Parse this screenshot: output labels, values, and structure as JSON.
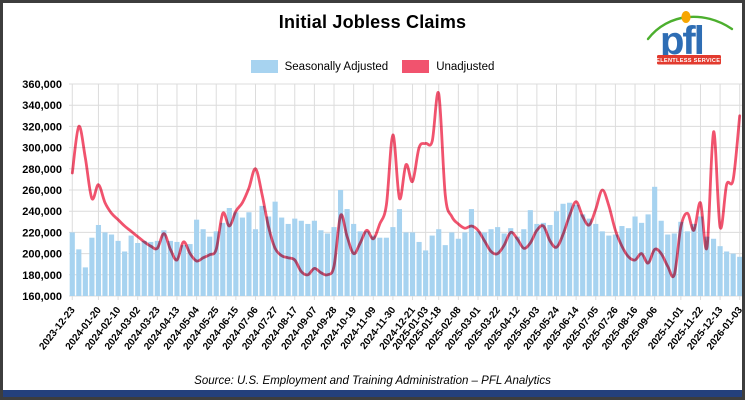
{
  "header": {
    "title": "Initial Jobless Claims"
  },
  "logo": {
    "text": "pfl",
    "tagline": "RELENTLESS SERVICE™",
    "colors": {
      "letters": "#2e6db4",
      "arc": "#4caf2e",
      "dot": "#f7a600",
      "box": "#e23a2e",
      "box_text": "#ffffff"
    }
  },
  "legend": [
    {
      "label": "Seasonally Adjusted",
      "color": "#a7d3f0"
    },
    {
      "label": "Unadjusted",
      "color": "#f1536e"
    }
  ],
  "footer": {
    "source": "Source: U.S. Employment and Training Administration – PFL Analytics",
    "bar_color": "#24407c"
  },
  "chart_data": {
    "type": "bar+line",
    "title": "Initial Jobless Claims",
    "xlabel": "",
    "ylabel": "",
    "ylim": [
      160000,
      360000
    ],
    "y_tick_step": 20000,
    "y_tick_labels": [
      "160,000",
      "180,000",
      "200,000",
      "220,000",
      "240,000",
      "260,000",
      "280,000",
      "300,000",
      "320,000",
      "340,000",
      "360,000"
    ],
    "grid": true,
    "grid_color": "#dcdcdc",
    "legend_position": "top",
    "x": [
      "2023-12-23",
      "2023-12-30",
      "2024-01-06",
      "2024-01-13",
      "2024-01-20",
      "2024-01-27",
      "2024-02-03",
      "2024-02-10",
      "2024-02-17",
      "2024-02-24",
      "2024-03-02",
      "2024-03-09",
      "2024-03-16",
      "2024-03-23",
      "2024-03-30",
      "2024-04-06",
      "2024-04-13",
      "2024-04-20",
      "2024-04-27",
      "2024-05-04",
      "2024-05-11",
      "2024-05-18",
      "2024-05-25",
      "2024-06-01",
      "2024-06-08",
      "2024-06-15",
      "2024-06-22",
      "2024-06-29",
      "2024-07-06",
      "2024-07-13",
      "2024-07-20",
      "2024-07-27",
      "2024-08-03",
      "2024-08-10",
      "2024-08-17",
      "2024-08-24",
      "2024-08-31",
      "2024-09-07",
      "2024-09-14",
      "2024-09-21",
      "2024-09-28",
      "2024-10-05",
      "2024-10-12",
      "2024-10-19",
      "2024-10-26",
      "2024-11-02",
      "2024-11-09",
      "2024-11-16",
      "2024-11-23",
      "2024-11-30",
      "2024-12-07",
      "2024-12-14",
      "2024-12-21",
      "2024-12-28",
      "2025-01-03",
      "2025-01-11",
      "2025-01-18",
      "2025-01-25",
      "2025-02-01",
      "2025-02-08",
      "2025-02-15",
      "2025-02-22",
      "2025-03-01",
      "2025-03-08",
      "2025-03-15",
      "2025-03-22",
      "2025-03-29",
      "2025-04-05",
      "2025-04-12",
      "2025-04-19",
      "2025-04-26",
      "2025-05-03",
      "2025-05-10",
      "2025-05-17",
      "2025-05-24",
      "2025-05-31",
      "2025-06-07",
      "2025-06-14",
      "2025-06-21",
      "2025-06-28",
      "2025-07-05",
      "2025-07-12",
      "2025-07-19",
      "2025-07-26",
      "2025-08-02",
      "2025-08-09",
      "2025-08-16",
      "2025-08-23",
      "2025-08-30",
      "2025-09-06",
      "2025-09-13",
      "2025-09-20",
      "2025-09-27",
      "2025-11-01",
      "2025-11-08",
      "2025-11-15",
      "2025-11-22",
      "2025-11-29",
      "2025-12-06",
      "2025-12-13",
      "2025-12-20",
      "2025-12-27",
      "2026-01-03"
    ],
    "x_tick_indices": [
      0,
      4,
      7,
      10,
      13,
      16,
      19,
      22,
      25,
      28,
      31,
      34,
      37,
      40,
      43,
      46,
      49,
      52,
      54,
      56,
      59,
      62,
      65,
      68,
      71,
      74,
      77,
      80,
      83,
      86,
      89,
      93,
      96,
      99,
      102
    ],
    "x_tick_labels": [
      "2023-12-23",
      "2024-01-20",
      "2024-02-10",
      "2024-03-02",
      "2024-03-23",
      "2024-04-13",
      "2024-05-04",
      "2024-05-25",
      "2024-06-15",
      "2024-07-06",
      "2024-07-27",
      "2024-08-17",
      "2024-09-07",
      "2024-09-28",
      "2024-10-19",
      "2024-11-09",
      "2024-11-30",
      "2024-12-21",
      "2025-01-03",
      "2025-01-18",
      "2025-02-08",
      "2025-03-01",
      "2025-03-22",
      "2025-04-12",
      "2025-05-03",
      "2025-05-24",
      "2025-06-14",
      "2025-07-05",
      "2025-07-26",
      "2025-08-16",
      "2025-09-06",
      "2025-11-01",
      "2025-11-22",
      "2025-12-13",
      "2026-01-03"
    ],
    "series": [
      {
        "name": "Seasonally Adjusted",
        "type": "bar",
        "color": "#a7d3f0",
        "values": [
          220000,
          204000,
          187000,
          215000,
          227000,
          220000,
          218000,
          212000,
          202000,
          217000,
          210000,
          212000,
          211000,
          212000,
          222000,
          212000,
          211000,
          208000,
          209000,
          232000,
          223000,
          216000,
          221000,
          229000,
          243000,
          239000,
          234000,
          239000,
          223000,
          245000,
          235000,
          249000,
          234000,
          228000,
          233000,
          231000,
          228000,
          231000,
          222000,
          219000,
          225000,
          260000,
          242000,
          228000,
          221000,
          221000,
          217000,
          215000,
          215000,
          225000,
          242000,
          220000,
          220000,
          211000,
          203000,
          217000,
          223000,
          208000,
          220000,
          214000,
          220000,
          242000,
          221000,
          220000,
          223000,
          225000,
          219000,
          224000,
          216000,
          223000,
          241000,
          228000,
          229000,
          227000,
          240000,
          247000,
          248000,
          246000,
          237000,
          233000,
          228000,
          221000,
          217000,
          218000,
          226000,
          224000,
          235000,
          229000,
          237000,
          263000,
          231000,
          218000,
          219000,
          230000,
          221000,
          228000,
          235000,
          216000,
          214000,
          207000,
          202000,
          200000,
          197000
        ]
      },
      {
        "name": "Unadjusted",
        "type": "line",
        "color": "#f1536e",
        "values": [
          276000,
          320000,
          290000,
          252000,
          265000,
          248000,
          238000,
          232000,
          226000,
          221000,
          216000,
          211000,
          207000,
          205000,
          219000,
          204000,
          194000,
          211000,
          200000,
          193000,
          196000,
          199000,
          204000,
          238000,
          226000,
          240000,
          248000,
          262000,
          280000,
          256000,
          225000,
          205000,
          198000,
          196000,
          194000,
          183000,
          180000,
          186000,
          182000,
          180000,
          188000,
          236000,
          216000,
          200000,
          210000,
          222000,
          214000,
          228000,
          246000,
          312000,
          252000,
          284000,
          268000,
          300000,
          304000,
          306000,
          351000,
          255000,
          235000,
          228000,
          224000,
          226000,
          222000,
          212000,
          202000,
          200000,
          208000,
          220000,
          214000,
          205000,
          210000,
          222000,
          226000,
          212000,
          206000,
          218000,
          236000,
          249000,
          235000,
          227000,
          242000,
          260000,
          245000,
          222000,
          207000,
          197000,
          194000,
          200000,
          191000,
          204000,
          200000,
          188000,
          180000,
          225000,
          238000,
          222000,
          248000,
          206000,
          315000,
          225000,
          265000,
          270000,
          330000
        ]
      }
    ]
  }
}
